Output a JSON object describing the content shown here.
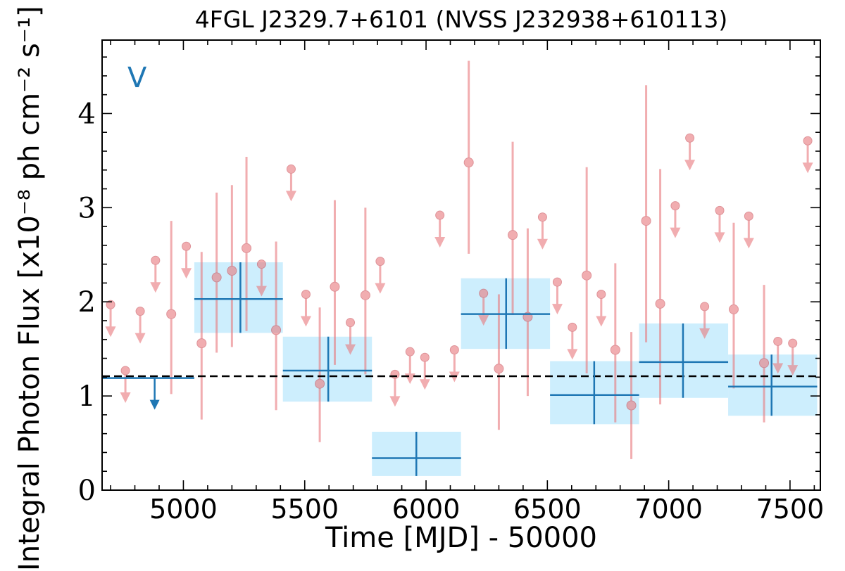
{
  "chart_data": {
    "type": "scatter",
    "title": "4FGL J2329.7+6101 (NVSS J232938+610113)",
    "xlabel": "Time [MJD] - 50000",
    "ylabel": "Integral Photon Flux [x10⁻⁸ ph cm⁻² s⁻¹]",
    "panel_label": "V",
    "xlim": [
      4665,
      7625
    ],
    "ylim": [
      0,
      4.78
    ],
    "x_ticks": [
      "5000",
      "5500",
      "6000",
      "6500",
      "7000",
      "7500"
    ],
    "y_ticks": [
      "0",
      "1",
      "2",
      "3",
      "4"
    ],
    "mean_flux": 1.21,
    "colors": {
      "fine": "#e8787c",
      "coarse": "#1f77b4",
      "coarse_band": "#cdeefd",
      "mean_line": "#000000"
    },
    "series": [
      {
        "name": "fine_bins_detections",
        "points": [
          {
            "x": 4950,
            "y": 1.87,
            "lo": 1.02,
            "hi": 2.86
          },
          {
            "x": 5075,
            "y": 1.56,
            "lo": 0.75,
            "hi": 2.53
          },
          {
            "x": 5137,
            "y": 2.26,
            "lo": 1.46,
            "hi": 3.16
          },
          {
            "x": 5200,
            "y": 2.33,
            "lo": 1.52,
            "hi": 3.24
          },
          {
            "x": 5260,
            "y": 2.57,
            "lo": 1.69,
            "hi": 3.54
          },
          {
            "x": 5382,
            "y": 1.7,
            "lo": 0.85,
            "hi": 2.64
          },
          {
            "x": 5562,
            "y": 1.13,
            "lo": 0.51,
            "hi": 1.94
          },
          {
            "x": 5624,
            "y": 2.16,
            "lo": 1.33,
            "hi": 3.08
          },
          {
            "x": 5750,
            "y": 2.07,
            "lo": 1.23,
            "hi": 3.0
          },
          {
            "x": 6176,
            "y": 3.48,
            "lo": 2.51,
            "hi": 4.56
          },
          {
            "x": 6300,
            "y": 1.29,
            "lo": 0.64,
            "hi": 2.08
          },
          {
            "x": 6357,
            "y": 2.71,
            "lo": 1.86,
            "hi": 3.7
          },
          {
            "x": 6419,
            "y": 1.84,
            "lo": 1.0,
            "hi": 2.78
          },
          {
            "x": 6662,
            "y": 2.28,
            "lo": 1.24,
            "hi": 3.43
          },
          {
            "x": 6780,
            "y": 1.49,
            "lo": 0.72,
            "hi": 2.41
          },
          {
            "x": 6846,
            "y": 0.9,
            "lo": 0.33,
            "hi": 1.68
          },
          {
            "x": 6907,
            "y": 2.86,
            "lo": 1.57,
            "hi": 4.3
          },
          {
            "x": 6965,
            "y": 1.98,
            "lo": 0.91,
            "hi": 3.41
          },
          {
            "x": 7268,
            "y": 1.92,
            "lo": 1.08,
            "hi": 2.84
          },
          {
            "x": 7393,
            "y": 1.35,
            "lo": 0.72,
            "hi": 2.18
          }
        ]
      },
      {
        "name": "fine_bins_upper_limits",
        "points": [
          {
            "x": 4700,
            "y": 1.97
          },
          {
            "x": 4761,
            "y": 1.27
          },
          {
            "x": 4822,
            "y": 1.9
          },
          {
            "x": 4885,
            "y": 2.44
          },
          {
            "x": 5012,
            "y": 2.59
          },
          {
            "x": 5322,
            "y": 2.4
          },
          {
            "x": 5444,
            "y": 3.41
          },
          {
            "x": 5505,
            "y": 2.08
          },
          {
            "x": 5688,
            "y": 1.78
          },
          {
            "x": 5811,
            "y": 2.43
          },
          {
            "x": 5872,
            "y": 1.23
          },
          {
            "x": 5934,
            "y": 1.47
          },
          {
            "x": 5995,
            "y": 1.41
          },
          {
            "x": 6057,
            "y": 2.92
          },
          {
            "x": 6117,
            "y": 1.49
          },
          {
            "x": 6237,
            "y": 2.09
          },
          {
            "x": 6480,
            "y": 2.9
          },
          {
            "x": 6541,
            "y": 2.21
          },
          {
            "x": 6603,
            "y": 1.73
          },
          {
            "x": 6722,
            "y": 2.08
          },
          {
            "x": 7027,
            "y": 3.02
          },
          {
            "x": 7087,
            "y": 3.74
          },
          {
            "x": 7148,
            "y": 1.95
          },
          {
            "x": 7210,
            "y": 2.97
          },
          {
            "x": 7330,
            "y": 2.91
          },
          {
            "x": 7450,
            "y": 1.58
          },
          {
            "x": 7511,
            "y": 1.56
          },
          {
            "x": 7573,
            "y": 3.71
          }
        ]
      },
      {
        "name": "coarse_bins",
        "points": [
          {
            "x0": 4665,
            "x1": 5045,
            "y": 1.19,
            "upper_limit": true
          },
          {
            "x0": 5045,
            "x1": 5410,
            "y": 2.03,
            "lo": 1.67,
            "hi": 2.42,
            "xc": 5235
          },
          {
            "x0": 5410,
            "x1": 5777,
            "y": 1.27,
            "lo": 0.94,
            "hi": 1.63,
            "xc": 5597
          },
          {
            "x0": 5777,
            "x1": 6144,
            "y": 0.34,
            "lo": 0.15,
            "hi": 0.62,
            "xc": 5960
          },
          {
            "x0": 6144,
            "x1": 6511,
            "y": 1.87,
            "lo": 1.5,
            "hi": 2.25,
            "xc": 6330
          },
          {
            "x0": 6511,
            "x1": 6878,
            "y": 1.01,
            "lo": 0.7,
            "hi": 1.37,
            "xc": 6693
          },
          {
            "x0": 6878,
            "x1": 7245,
            "y": 1.36,
            "lo": 0.98,
            "hi": 1.77,
            "xc": 7059
          },
          {
            "x0": 7245,
            "x1": 7612,
            "y": 1.1,
            "lo": 0.79,
            "hi": 1.44,
            "xc": 7424
          }
        ]
      }
    ]
  }
}
